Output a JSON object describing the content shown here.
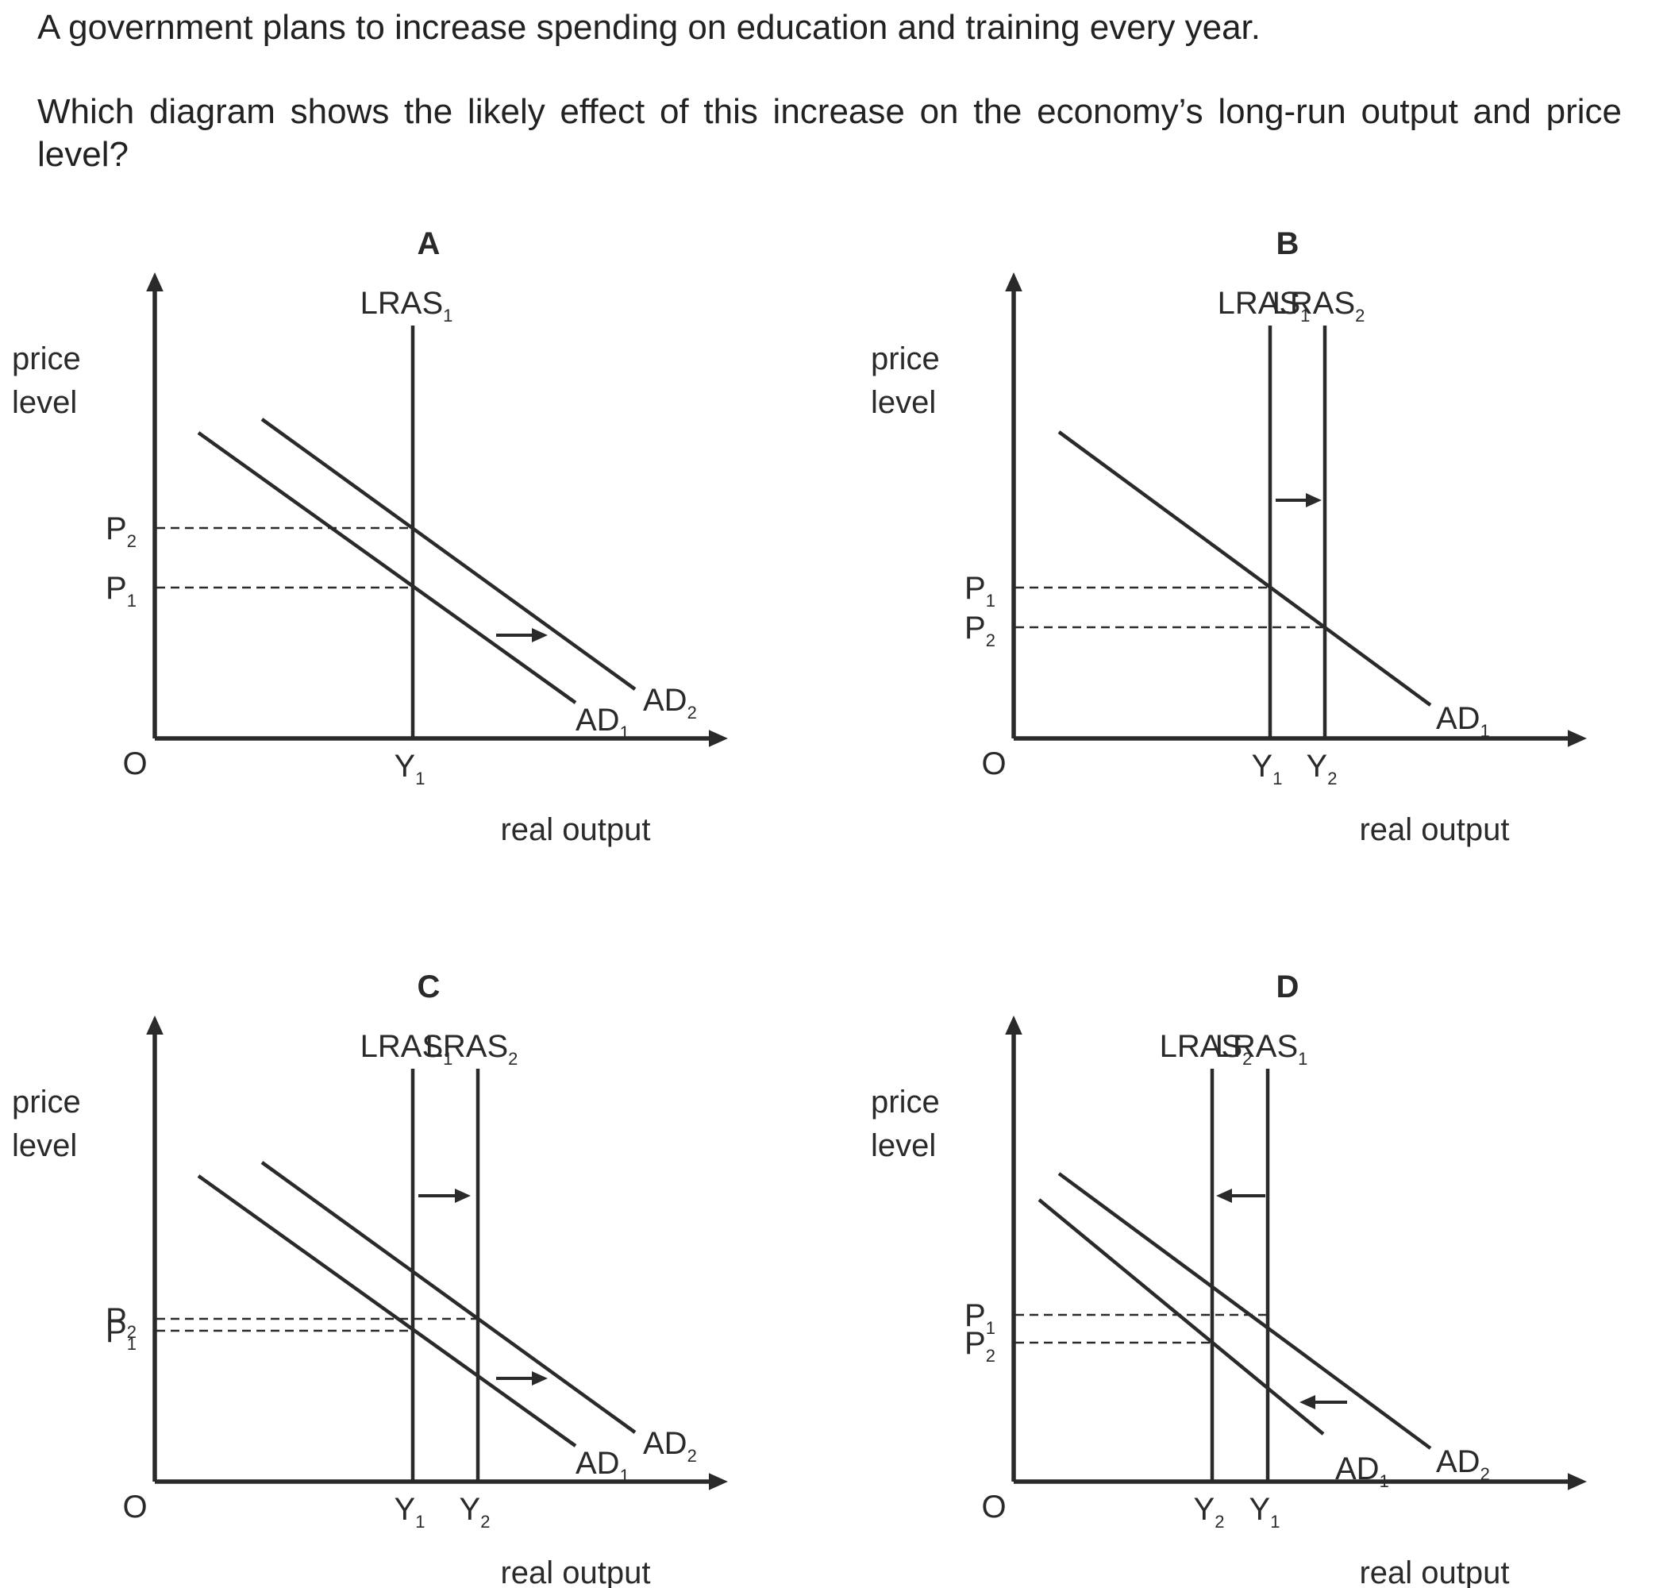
{
  "question": {
    "line1": "A government plans to increase spending on education and training every year.",
    "line2": "Which diagram shows the likely effect of this increase on the economy’s long-run output and price level?"
  },
  "axis": {
    "ylabel_line1": "price",
    "ylabel_line2": "level",
    "xlabel": "real output",
    "origin": "O"
  },
  "diagrams": [
    {
      "letter": "A",
      "lras_labels": [
        {
          "main": "LRAS",
          "sub": "1"
        }
      ],
      "ad_labels": [
        {
          "main": "AD",
          "sub": "1"
        },
        {
          "main": "AD",
          "sub": "2"
        }
      ],
      "p_labels": [
        {
          "main": "P",
          "sub": "2"
        },
        {
          "main": "P",
          "sub": "1"
        }
      ],
      "y_labels": [
        {
          "main": "Y",
          "sub": "1"
        }
      ]
    },
    {
      "letter": "B",
      "lras_labels": [
        {
          "main": "LRAS",
          "sub": "1"
        },
        {
          "main": "LRAS",
          "sub": "2"
        }
      ],
      "ad_labels": [
        {
          "main": "AD",
          "sub": "1"
        }
      ],
      "p_labels": [
        {
          "main": "P",
          "sub": "1"
        },
        {
          "main": "P",
          "sub": "2"
        }
      ],
      "y_labels": [
        {
          "main": "Y",
          "sub": "1"
        },
        {
          "main": "Y",
          "sub": "2"
        }
      ]
    },
    {
      "letter": "C",
      "lras_labels": [
        {
          "main": "LRAS",
          "sub": "1"
        },
        {
          "main": "LRAS",
          "sub": "2"
        }
      ],
      "ad_labels": [
        {
          "main": "AD",
          "sub": "1"
        },
        {
          "main": "AD",
          "sub": "2"
        }
      ],
      "p_labels": [
        {
          "main": "P",
          "sub": "2"
        },
        {
          "main": "P",
          "sub": "1"
        }
      ],
      "y_labels": [
        {
          "main": "Y",
          "sub": "1"
        },
        {
          "main": "Y",
          "sub": "2"
        }
      ]
    },
    {
      "letter": "D",
      "lras_labels": [
        {
          "main": "LRAS",
          "sub": "2"
        },
        {
          "main": "LRAS",
          "sub": "1"
        }
      ],
      "ad_labels": [
        {
          "main": "AD",
          "sub": "2"
        },
        {
          "main": "AD",
          "sub": "1"
        }
      ],
      "p_labels": [
        {
          "main": "P",
          "sub": "1"
        },
        {
          "main": "P",
          "sub": "2"
        }
      ],
      "y_labels": [
        {
          "main": "Y",
          "sub": "2"
        },
        {
          "main": "Y",
          "sub": "1"
        }
      ]
    }
  ]
}
